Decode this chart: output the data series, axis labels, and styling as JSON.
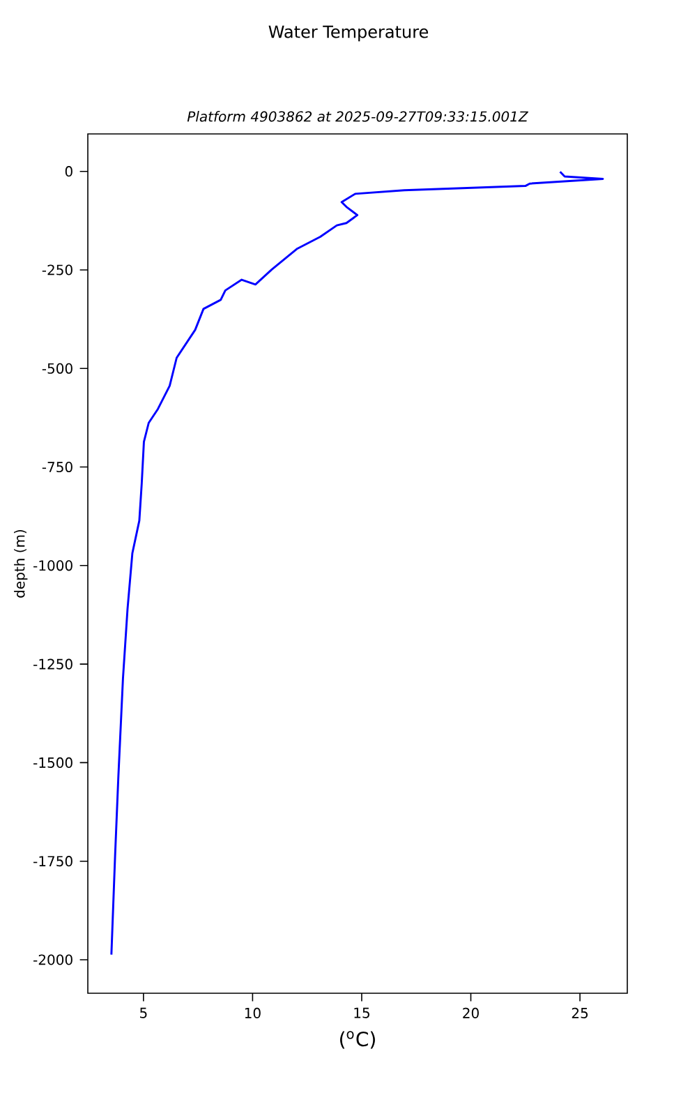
{
  "chart_data": {
    "type": "line",
    "title": "Water Temperature",
    "subtitle": "Platform 4903862 at 2025-09-27T09:33:15.001Z",
    "xlabel": "($^{o}$C)",
    "ylabel": "depth (m)",
    "x": [
      24.09,
      24.3,
      26.05,
      22.7,
      22.5,
      16.95,
      14.7,
      14.08,
      14.3,
      14.8,
      14.3,
      13.86,
      13.1,
      12.05,
      10.88,
      10.13,
      9.5,
      8.75,
      8.54,
      7.75,
      7.37,
      6.52,
      6.2,
      5.66,
      5.24,
      5.02,
      4.92,
      4.81,
      4.49,
      4.27,
      4.06,
      3.85,
      3.7,
      3.53
    ],
    "series": [
      {
        "color": "#0000ff",
        "values": [
          -1,
          -13,
          -19,
          -31,
          -37,
          -48,
          -57,
          -78,
          -90,
          -111,
          -131,
          -137,
          -166,
          -196,
          -249,
          -287,
          -275,
          -302,
          -326,
          -349,
          -402,
          -473,
          -544,
          -603,
          -638,
          -686,
          -792,
          -886,
          -969,
          -1110,
          -1287,
          -1535,
          -1736,
          -1987
        ]
      }
    ],
    "xlim": [
      2.45,
      27.17
    ],
    "ylim": [
      -2085,
      95
    ],
    "xticks": [
      5,
      10,
      15,
      20,
      25
    ],
    "yticks": [
      0,
      -250,
      -500,
      -750,
      -1000,
      -1250,
      -1500,
      -1750,
      -2000
    ],
    "grid": false,
    "marker": "none",
    "line_style": "solid"
  }
}
